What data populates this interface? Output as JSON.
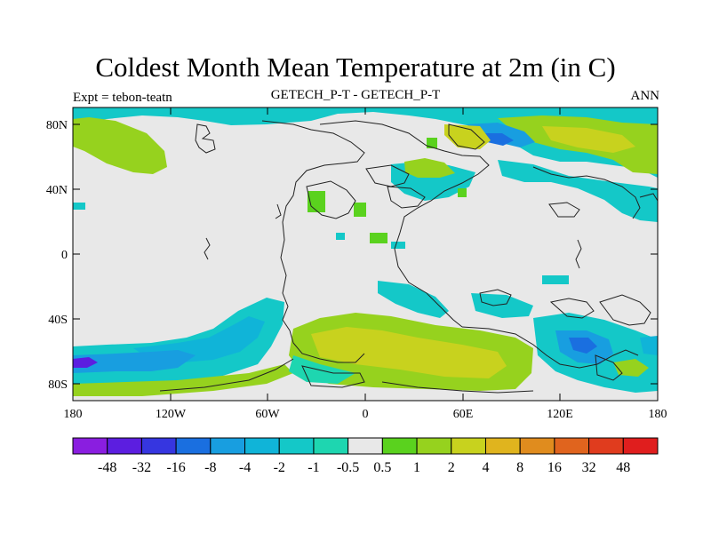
{
  "title": "Coldest Month Mean Temperature at 2m (in C)",
  "left_label": "Expt = tebon-teatn",
  "center_label": "GETECH_P-T - GETECH_P-T",
  "right_label": "ANN",
  "y_ticks": [
    "80N",
    "40N",
    "0",
    "40S",
    "80S"
  ],
  "x_ticks": [
    "180",
    "120W",
    "60W",
    "0",
    "60E",
    "120E",
    "180"
  ],
  "colorbar": {
    "labels": [
      "-48",
      "-32",
      "-16",
      "-8",
      "-4",
      "-2",
      "-1",
      "-0.5",
      "0.5",
      "1",
      "2",
      "4",
      "8",
      "16",
      "32",
      "48"
    ],
    "colors": [
      "#8a1ee0",
      "#5c1ee0",
      "#3636e0",
      "#1a6fe0",
      "#189ee0",
      "#10b4d8",
      "#14c8c8",
      "#1ed6b0",
      "#e8e8e8",
      "#5ad21e",
      "#96d21e",
      "#c8d21e",
      "#e0b41e",
      "#e08c1e",
      "#e0641e",
      "#e03c1e",
      "#e01e1e"
    ]
  },
  "map_colors": {
    "background": "#e8e8e8",
    "cyan": "#14c8c8",
    "teal": "#1ed6b0",
    "light_blue": "#10b4d8",
    "blue": "#189ee0",
    "dark_blue": "#1a6fe0",
    "violet": "#5c1ee0",
    "green": "#5ad21e",
    "yellow_green": "#96d21e",
    "olive": "#c8d21e"
  }
}
